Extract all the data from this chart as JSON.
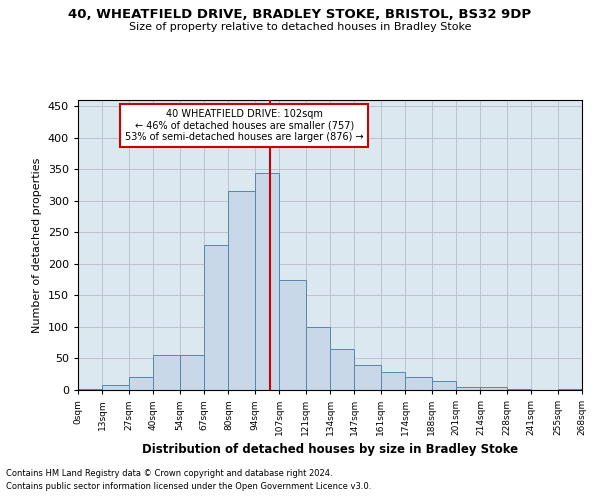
{
  "title1": "40, WHEATFIELD DRIVE, BRADLEY STOKE, BRISTOL, BS32 9DP",
  "title2": "Size of property relative to detached houses in Bradley Stoke",
  "xlabel": "Distribution of detached houses by size in Bradley Stoke",
  "ylabel": "Number of detached properties",
  "footnote1": "Contains HM Land Registry data © Crown copyright and database right 2024.",
  "footnote2": "Contains public sector information licensed under the Open Government Licence v3.0.",
  "annotation_line1": "40 WHEATFIELD DRIVE: 102sqm",
  "annotation_line2": "← 46% of detached houses are smaller (757)",
  "annotation_line3": "53% of semi-detached houses are larger (876) →",
  "property_size": 102,
  "bar_color": "#c8d8e8",
  "bar_edge_color": "#5588aa",
  "vline_color": "#cc0000",
  "annotation_box_color": "#ffffff",
  "annotation_box_edge": "#cc0000",
  "background_color": "#ffffff",
  "grid_color": "#bbbbcc",
  "bin_edges": [
    0,
    13,
    27,
    40,
    54,
    67,
    80,
    94,
    107,
    121,
    134,
    147,
    161,
    174,
    188,
    201,
    214,
    228,
    241,
    255,
    268
  ],
  "bin_labels": [
    "0sqm",
    "13sqm",
    "27sqm",
    "40sqm",
    "54sqm",
    "67sqm",
    "80sqm",
    "94sqm",
    "107sqm",
    "121sqm",
    "134sqm",
    "147sqm",
    "161sqm",
    "174sqm",
    "188sqm",
    "201sqm",
    "214sqm",
    "228sqm",
    "241sqm",
    "255sqm",
    "268sqm"
  ],
  "counts": [
    2,
    8,
    20,
    55,
    55,
    230,
    315,
    345,
    175,
    100,
    65,
    40,
    28,
    20,
    15,
    5,
    5,
    2,
    0,
    2
  ],
  "ylim": [
    0,
    460
  ],
  "yticks": [
    0,
    50,
    100,
    150,
    200,
    250,
    300,
    350,
    400,
    450
  ]
}
